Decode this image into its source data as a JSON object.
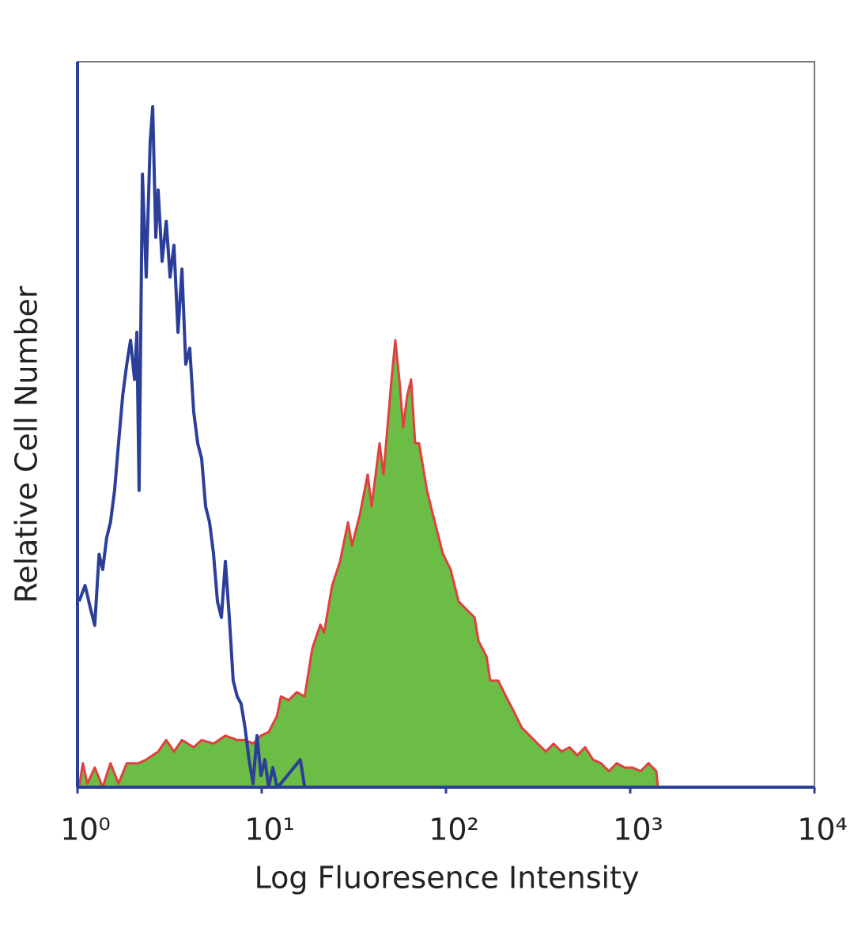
{
  "chart_data": {
    "type": "line",
    "x_label": "Log Fluoresence Intensity",
    "y_label": "Relative Cell Number",
    "xscale": "log",
    "xlim": [
      1,
      10000
    ],
    "ylim": [
      0,
      100
    ],
    "xticks": [
      {
        "value": 1,
        "label": "10⁰"
      },
      {
        "value": 10,
        "label": "10¹"
      },
      {
        "value": 100,
        "label": "10²"
      },
      {
        "value": 1000,
        "label": "10³"
      },
      {
        "value": 10000,
        "label": "10⁴"
      }
    ],
    "series": [
      {
        "color": "#2b3f99",
        "fill": false,
        "x": [
          1.02,
          1.1,
          1.18,
          1.24,
          1.31,
          1.37,
          1.44,
          1.51,
          1.59,
          1.67,
          1.76,
          1.85,
          1.94,
          2.04,
          2.1,
          2.16,
          2.25,
          2.36,
          2.48,
          2.56,
          2.66,
          2.74,
          2.88,
          3.03,
          3.18,
          3.34,
          3.51,
          3.69,
          3.87,
          4.07,
          4.27,
          4.49,
          4.72,
          4.96,
          5.21,
          5.47,
          5.75,
          6.04,
          6.35,
          6.67,
          7.0,
          7.36,
          7.73,
          8.12,
          8.53,
          8.97,
          9.42,
          9.9,
          10.4,
          10.9,
          11.5,
          12.1,
          12.7,
          16.2,
          17.1
        ],
        "values": [
          25.6,
          27.8,
          24.5,
          22.3,
          32.1,
          30.0,
          34.4,
          36.5,
          40.9,
          47.4,
          54.0,
          58.3,
          61.6,
          56.2,
          62.7,
          40.9,
          84.5,
          70.3,
          88.9,
          93.8,
          75.8,
          82.3,
          72.5,
          78.0,
          70.3,
          74.7,
          62.7,
          71.4,
          58.3,
          60.5,
          51.8,
          47.4,
          45.3,
          38.7,
          36.5,
          32.2,
          25.6,
          23.4,
          31.1,
          23.4,
          14.7,
          12.5,
          11.5,
          8.2,
          3.8,
          0.5,
          7.1,
          1.6,
          3.8,
          0,
          2.7,
          0,
          0.5,
          3.8,
          0
        ]
      },
      {
        "color": "#6cbd45",
        "edge_color": "#e0403f",
        "fill": true,
        "x": [
          1.02,
          1.07,
          1.13,
          1.24,
          1.37,
          1.51,
          1.67,
          1.85,
          2.14,
          2.36,
          2.74,
          3.03,
          3.34,
          3.69,
          4.27,
          4.72,
          5.47,
          6.35,
          7.36,
          8.12,
          8.97,
          9.9,
          10.9,
          12.1,
          12.7,
          14.0,
          15.5,
          17.1,
          18.8,
          20.8,
          21.8,
          24.1,
          26.6,
          29.4,
          30.9,
          34.1,
          37.6,
          39.5,
          43.6,
          45.8,
          50.6,
          53.1,
          55.8,
          58.6,
          61.6,
          64.7,
          68.0,
          71.4,
          78.9,
          82.8,
          87.1,
          96.1,
          106,
          117,
          129,
          143,
          150,
          166,
          174,
          192,
          212,
          234,
          258,
          285,
          315,
          348,
          384,
          424,
          468,
          516,
          569,
          628,
          694,
          766,
          845,
          933,
          1030,
          1138,
          1256,
          1386,
          1413
        ],
        "values": [
          0,
          3.3,
          0.5,
          2.7,
          0,
          3.3,
          0.5,
          3.3,
          3.3,
          3.8,
          4.9,
          6.5,
          4.9,
          6.5,
          5.5,
          6.5,
          6.0,
          7.1,
          6.5,
          6.5,
          6.0,
          7.1,
          7.6,
          9.8,
          12.5,
          12.0,
          13.1,
          12.5,
          19.1,
          22.4,
          21.3,
          27.8,
          31.1,
          36.5,
          33.3,
          37.6,
          43.1,
          38.7,
          47.4,
          43.1,
          56.2,
          61.6,
          56.2,
          49.6,
          54.0,
          56.2,
          47.4,
          47.4,
          40.9,
          38.7,
          36.5,
          32.2,
          30.0,
          25.6,
          24.5,
          23.4,
          20.2,
          18.0,
          14.7,
          14.7,
          12.5,
          10.4,
          8.2,
          7.1,
          6.0,
          4.9,
          6.0,
          4.9,
          5.5,
          4.4,
          5.5,
          3.8,
          3.3,
          2.2,
          3.3,
          2.7,
          2.7,
          2.2,
          3.3,
          2.2,
          0
        ]
      }
    ]
  }
}
